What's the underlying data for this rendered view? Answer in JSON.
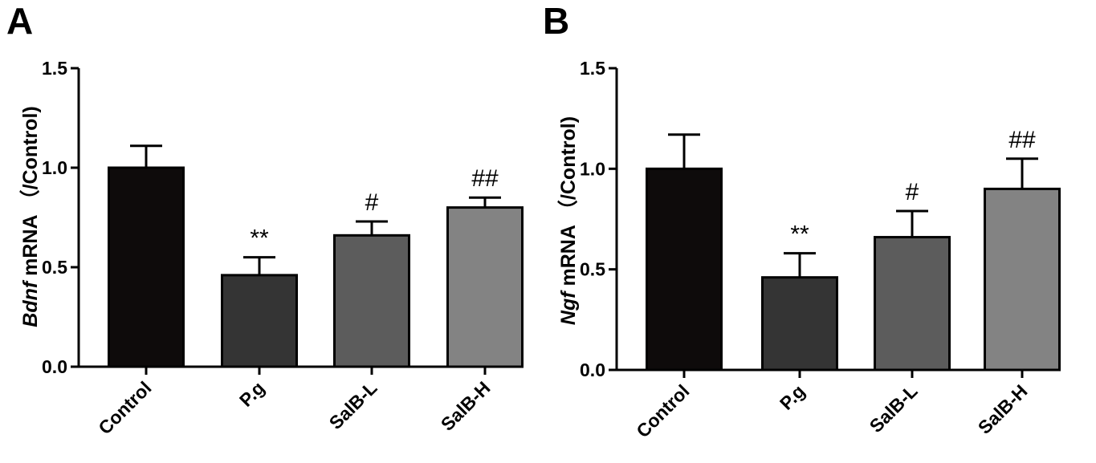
{
  "chart_data": [
    {
      "panel": "A",
      "type": "bar",
      "categories": [
        "Control",
        "P.g",
        "SalB-L",
        "SalB-H"
      ],
      "values": [
        1.0,
        0.46,
        0.66,
        0.8
      ],
      "errors": [
        0.11,
        0.09,
        0.07,
        0.05
      ],
      "annotations": [
        "",
        "**",
        "#",
        "##"
      ],
      "colors": [
        "#0e0b0b",
        "#343434",
        "#5c5c5c",
        "#838383"
      ],
      "ylabel_gene": "Bdnf",
      "ylabel_rest": " mRNA （/Control)",
      "ylim": [
        0,
        1.5
      ],
      "yticks": [
        "0.0",
        "0.5",
        "1.0",
        "1.5"
      ]
    },
    {
      "panel": "B",
      "type": "bar",
      "categories": [
        "Control",
        "P.g",
        "SalB-L",
        "SalB-H"
      ],
      "values": [
        1.0,
        0.46,
        0.66,
        0.9
      ],
      "errors": [
        0.17,
        0.12,
        0.13,
        0.15
      ],
      "annotations": [
        "",
        "**",
        "#",
        "##"
      ],
      "colors": [
        "#0e0b0b",
        "#343434",
        "#5c5c5c",
        "#838383"
      ],
      "ylabel_gene": "Ngf",
      "ylabel_rest": " mRNA （/Control)",
      "ylim": [
        0,
        1.5
      ],
      "yticks": [
        "0.0",
        "0.5",
        "1.0",
        "1.5"
      ]
    }
  ]
}
